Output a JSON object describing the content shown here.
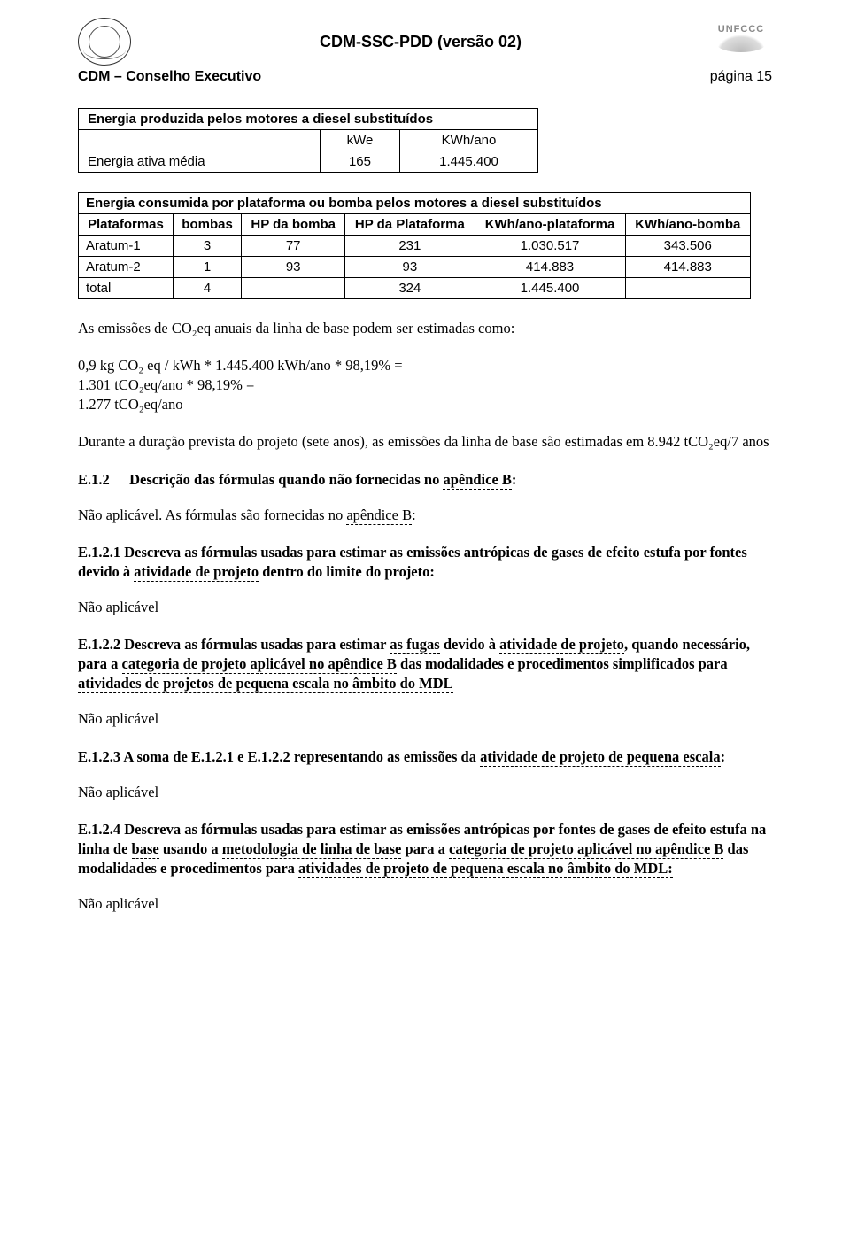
{
  "header": {
    "doc_title": "CDM-SSC-PDD (versão 02)",
    "org_left": "CDM – Conselho Executivo",
    "page_label": "página 15",
    "unfccc": "UNFCCC"
  },
  "table1": {
    "title": "Energia produzida pelos motores a diesel substituídos",
    "col_kwe": "kWe",
    "col_kwhano": "KWh/ano",
    "row_label": "Energia ativa média",
    "kwe_val": "165",
    "kwh_val": "1.445.400"
  },
  "table2": {
    "title": "Energia consumida por plataforma ou bomba pelos motores a diesel substituídos",
    "h_plat": "Plataformas",
    "h_bombas": "bombas",
    "h_hp_bomba": "HP da bomba",
    "h_hp_plat": "HP da Plataforma",
    "h_kwh_plat": "KWh/ano-plataforma",
    "h_kwh_bomba": "KWh/ano-bomba",
    "rows": [
      {
        "plat": "Aratum-1",
        "bombas": "3",
        "hp_bomba": "77",
        "hp_plat": "231",
        "kwh_plat": "1.030.517",
        "kwh_bomba": "343.506"
      },
      {
        "plat": "Aratum-2",
        "bombas": "1",
        "hp_bomba": "93",
        "hp_plat": "93",
        "kwh_plat": "414.883",
        "kwh_bomba": "414.883"
      },
      {
        "plat": "total",
        "bombas": "4",
        "hp_bomba": "",
        "hp_plat": "324",
        "kwh_plat": "1.445.400",
        "kwh_bomba": ""
      }
    ]
  },
  "calc": {
    "intro": "As emissões de CO₂eq  anuais da linha de base podem ser estimadas como:",
    "l1": "0,9 kg CO₂ eq / kWh * 1.445.400 kWh/ano * 98,19% =",
    "l2": "1.301 tCO₂eq/ano * 98,19% =",
    "l3": "1.277 tCO₂eq/ano",
    "duration": "Durante a duração prevista do projeto (sete anos), as emissões da linha de base são estimadas em 8.942 tCO₂eq/7 anos"
  },
  "e12": {
    "label": "E.1.2",
    "title_a": "Descrição das fórmulas quando não fornecidas no ",
    "title_b": "apêndice B",
    "title_c": ":",
    "body_a": "Não aplicável. As fórmulas são fornecidas no ",
    "body_b": "apêndice B",
    "body_c": ":"
  },
  "e121": {
    "t1": "E.1.2.1 Descreva as fórmulas usadas para estimar as emissões antrópicas de gases de efeito estufa por fontes devido à ",
    "t2": "atividade de projeto",
    "t3": " dentro do limite do projeto:",
    "na": "Não aplicável"
  },
  "e122": {
    "t1": "E.1.2.2 Descreva as fórmulas usadas para estimar ",
    "t2": "as fugas",
    "t3": " devido à ",
    "t4": "atividade de projeto",
    "t5": ", quando necessário, para a ",
    "t6": "categoria de projeto aplicável no apêndice B",
    "t7": " das modalidades e procedimentos simplificados para ",
    "t8": "atividades de projetos de pequena escala no âmbito do MDL",
    "na": "Não aplicável"
  },
  "e123": {
    "t1": "E.1.2.3 A soma de E.1.2.1 e E.1.2.2 representando as emissões da ",
    "t2": "atividade de projeto de pequena escala",
    "t3": ":",
    "na": "Não aplicável"
  },
  "e124": {
    "t1": "E.1.2.4 Descreva as fórmulas usadas para estimar as emissões antrópicas por fontes de gases de efeito estufa na linha de ",
    "t2": "base",
    "t3": " usando a ",
    "t4": "metodologia de linha de base",
    "t5": " para a ",
    "t6": "categoria de projeto aplicável no apêndice B",
    "t7": " das modalidades e procedimentos para ",
    "t8": "atividades de projeto de pequena escala no âmbito do MDL:",
    "na": "Não aplicável"
  }
}
